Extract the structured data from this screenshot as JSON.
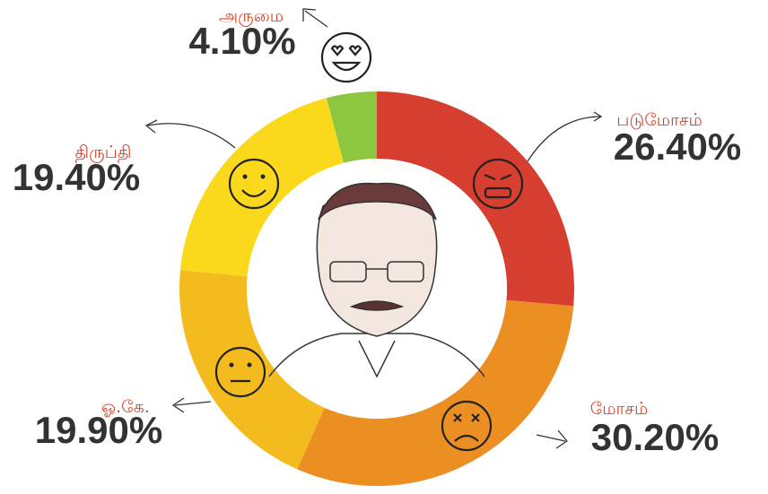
{
  "chart_data": {
    "type": "donut",
    "categories": [
      "படுமோசம்",
      "மோசம்",
      "ஓ.கே.",
      "திருப்தி",
      "அருமை"
    ],
    "values": [
      26.4,
      30.2,
      19.9,
      19.4,
      4.1
    ],
    "value_labels": [
      "26.40%",
      "30.20%",
      "19.90%",
      "19.40%",
      "4.10%"
    ],
    "colors": [
      "#d63e2f",
      "#ec8f23",
      "#f3bb1d",
      "#fad91c",
      "#8dc63f"
    ]
  }
}
